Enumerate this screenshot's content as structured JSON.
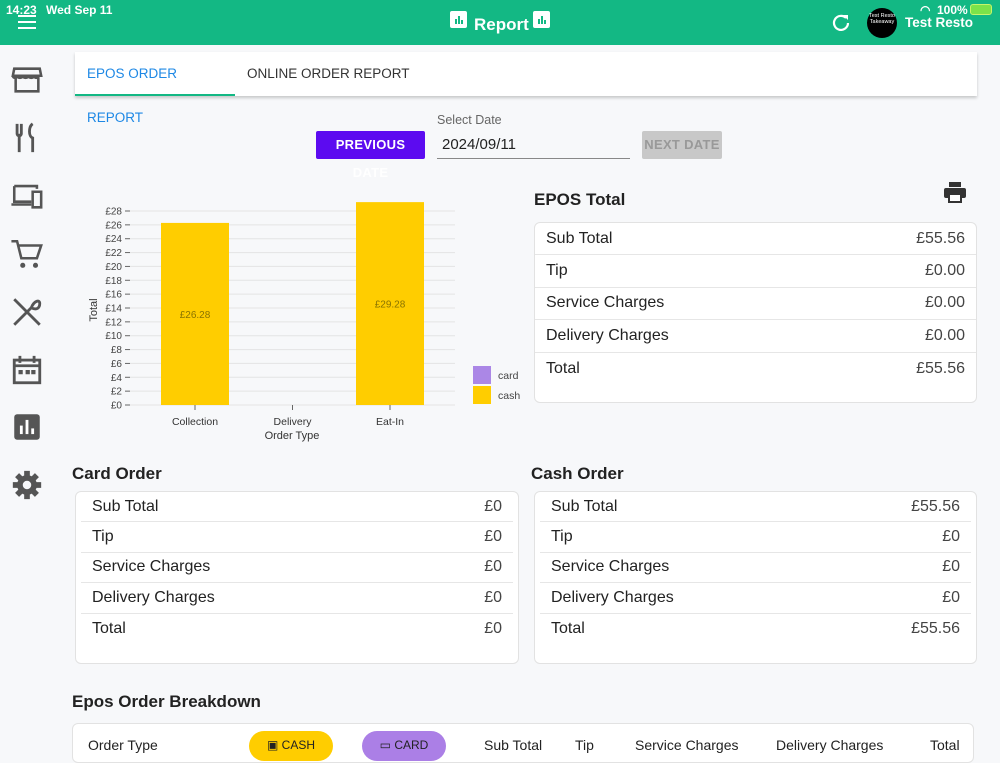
{
  "status_bar": {
    "time": "14:23",
    "date": "Wed Sep 11",
    "battery": "100%"
  },
  "header": {
    "title": "Report",
    "user": "Test Resto",
    "avatar_text": "Test Resto Takeaway"
  },
  "tabs": [
    {
      "label": "EPOS ORDER REPORT",
      "active": true
    },
    {
      "label": "ONLINE ORDER REPORT",
      "active": false
    }
  ],
  "date_picker": {
    "label": "Select Date",
    "value": "2024/09/11",
    "prev_label": "PREVIOUS DATE",
    "next_label": "NEXT DATE"
  },
  "chart_data": {
    "type": "bar",
    "stacked": true,
    "categories": [
      "Collection",
      "Delivery",
      "Eat-In"
    ],
    "series": [
      {
        "name": "card",
        "color": "#ab87e6",
        "values": [
          0,
          0,
          0
        ]
      },
      {
        "name": "cash",
        "color": "#ffcd00",
        "values": [
          26.28,
          0,
          29.28
        ]
      }
    ],
    "data_labels": [
      "£26.28",
      "",
      "£29.28"
    ],
    "xlabel": "Order Type",
    "ylabel": "Total",
    "ylim": [
      0,
      28
    ],
    "yticks": [
      "£0",
      "£2",
      "£4",
      "£6",
      "£8",
      "£10",
      "£12",
      "£14",
      "£16",
      "£18",
      "£20",
      "£22",
      "£24",
      "£26",
      "£28"
    ],
    "legend": "right-bottom",
    "grid": true
  },
  "epos_total": {
    "title": "EPOS Total",
    "rows": [
      {
        "label": "Sub Total",
        "value": "£55.56"
      },
      {
        "label": "Tip",
        "value": "£0.00"
      },
      {
        "label": "Service Charges",
        "value": "£0.00"
      },
      {
        "label": "Delivery Charges",
        "value": "£0.00"
      },
      {
        "label": "Total",
        "value": "£55.56"
      }
    ]
  },
  "card_order": {
    "title": "Card Order",
    "rows": [
      {
        "label": "Sub Total",
        "value": "£0"
      },
      {
        "label": "Tip",
        "value": "£0"
      },
      {
        "label": "Service Charges",
        "value": "£0"
      },
      {
        "label": "Delivery Charges",
        "value": "£0"
      },
      {
        "label": "Total",
        "value": "£0"
      }
    ]
  },
  "cash_order": {
    "title": "Cash Order",
    "rows": [
      {
        "label": "Sub Total",
        "value": "£55.56"
      },
      {
        "label": "Tip",
        "value": "£0"
      },
      {
        "label": "Service Charges",
        "value": "£0"
      },
      {
        "label": "Delivery Charges",
        "value": "£0"
      },
      {
        "label": "Total",
        "value": "£55.56"
      }
    ]
  },
  "breakdown": {
    "title": "Epos Order Breakdown",
    "columns": [
      "Order Type",
      "CASH",
      "CARD",
      "Sub Total",
      "Tip",
      "Service Charges",
      "Delivery Charges",
      "Total"
    ]
  }
}
